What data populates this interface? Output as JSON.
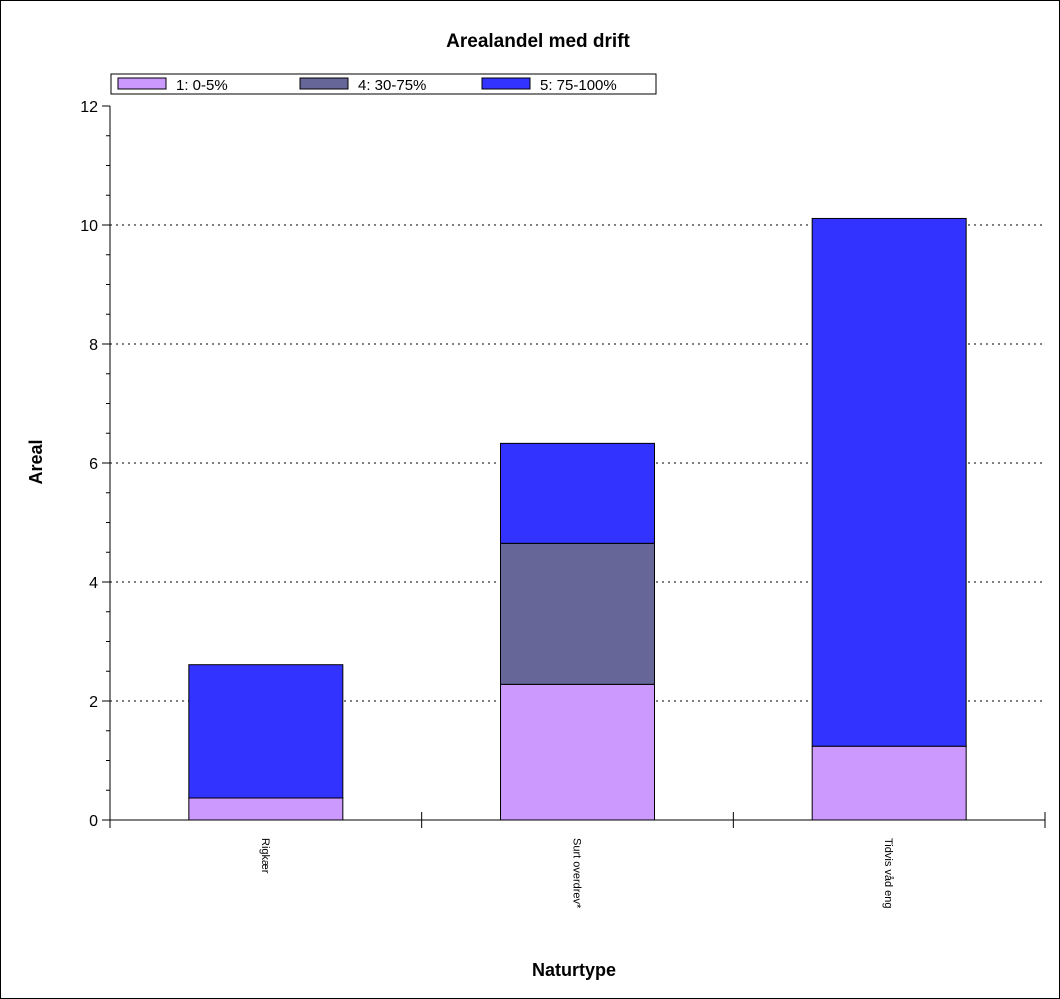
{
  "chart_data": {
    "type": "bar",
    "stacked": true,
    "title": "Arealandel med drift",
    "xlabel": "Naturtype",
    "ylabel": "Areal",
    "ylim": [
      0,
      12
    ],
    "yticks": [
      0,
      2,
      4,
      6,
      8,
      10,
      12
    ],
    "grid": "horizontal-dotted",
    "legend_position": "top-left",
    "categories": [
      "Rigkær",
      "Surt overdrev*",
      "Tidvis våd eng"
    ],
    "series": [
      {
        "name": "1: 0-5%",
        "color": "#cc99ff",
        "values": [
          0.37,
          2.28,
          1.24
        ]
      },
      {
        "name": "4: 30-75%",
        "color": "#666699",
        "values": [
          0,
          2.37,
          0
        ]
      },
      {
        "name": "5: 75-100%",
        "color": "#3333ff",
        "values": [
          2.24,
          1.68,
          8.87
        ]
      }
    ]
  }
}
